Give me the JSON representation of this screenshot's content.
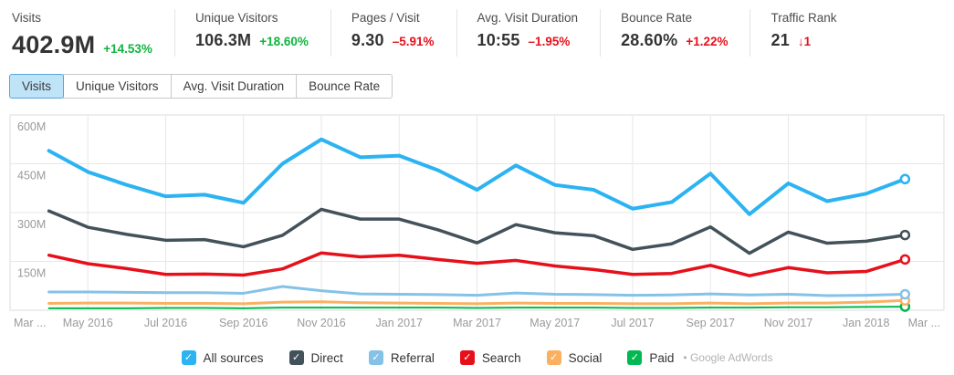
{
  "metrics": [
    {
      "label": "Visits",
      "value": "402.9M",
      "delta": "+14.53%",
      "delta_color": "green"
    },
    {
      "label": "Unique Visitors",
      "value": "106.3M",
      "delta": "+18.60%",
      "delta_color": "green"
    },
    {
      "label": "Pages / Visit",
      "value": "9.30",
      "delta": "–5.91%",
      "delta_color": "red"
    },
    {
      "label": "Avg. Visit Duration",
      "value": "10:55",
      "delta": "–1.95%",
      "delta_color": "red"
    },
    {
      "label": "Bounce Rate",
      "value": "28.60%",
      "delta": "+1.22%",
      "delta_color": "red"
    },
    {
      "label": "Traffic Rank",
      "value": "21",
      "delta": "↓1",
      "delta_color": "red"
    }
  ],
  "tabs": [
    {
      "label": "Visits",
      "selected": true
    },
    {
      "label": "Unique Visitors",
      "selected": false
    },
    {
      "label": "Avg. Visit Duration",
      "selected": false
    },
    {
      "label": "Bounce Rate",
      "selected": false
    }
  ],
  "legend": {
    "paid_suffix": "• Google AdWords"
  },
  "colors": {
    "delta_up": "#0eb53e",
    "delta_down": "#e6101b",
    "tab_selected_bg": "#bfe3f7",
    "tab_selected_border": "#55a7da",
    "grid": "#e7e7e7",
    "plot_border": "#dcdcdc",
    "axis_text": "#9a9a9a"
  },
  "chart_data": {
    "type": "line",
    "title": "Visits by source, monthly",
    "xlabel": "",
    "ylabel": "Visits",
    "ylim": [
      0,
      600
    ],
    "grid": true,
    "legend_position": "bottom",
    "y_tick_labels": [
      "600M",
      "450M",
      "300M",
      "150M"
    ],
    "x_range": [
      "Mar 2016",
      "Mar 2018"
    ],
    "x_tick_labels": [
      "Mar ...",
      "May 2016",
      "Jul 2016",
      "Sep 2016",
      "Nov 2016",
      "Jan 2017",
      "Mar 2017",
      "May 2017",
      "Jul 2017",
      "Sep 2017",
      "Nov 2017",
      "Jan 2018",
      "Mar ..."
    ],
    "months": [
      "Apr 2016",
      "May 2016",
      "Jun 2016",
      "Jul 2016",
      "Aug 2016",
      "Sep 2016",
      "Oct 2016",
      "Nov 2016",
      "Dec 2016",
      "Jan 2017",
      "Feb 2017",
      "Mar 2017",
      "Apr 2017",
      "May 2017",
      "Jun 2017",
      "Jul 2017",
      "Aug 2017",
      "Sep 2017",
      "Oct 2017",
      "Nov 2017",
      "Dec 2017",
      "Jan 2018",
      "Feb 2018"
    ],
    "unit": "M",
    "series": [
      {
        "name": "all-sources",
        "label": "All sources",
        "color": "#2bb3f2",
        "width": 4,
        "values": [
          490,
          425,
          385,
          350,
          355,
          330,
          450,
          525,
          470,
          475,
          430,
          370,
          445,
          385,
          370,
          312,
          332,
          420,
          295,
          390,
          335,
          358,
          403
        ]
      },
      {
        "name": "direct",
        "label": "Direct",
        "color": "#43525a",
        "width": 3.5,
        "values": [
          305,
          255,
          233,
          215,
          217,
          195,
          230,
          310,
          280,
          280,
          247,
          207,
          263,
          238,
          229,
          187,
          204,
          256,
          175,
          240,
          206,
          212,
          231
        ]
      },
      {
        "name": "referral",
        "label": "Referral",
        "color": "#85c2e8",
        "width": 3,
        "values": [
          56,
          56,
          55,
          54,
          54,
          52,
          73,
          60,
          50,
          49,
          48,
          46,
          53,
          49,
          48,
          46,
          47,
          50,
          47,
          49,
          45,
          46,
          49
        ]
      },
      {
        "name": "search",
        "label": "Search",
        "color": "#e6101b",
        "width": 3.5,
        "values": [
          169,
          143,
          128,
          110,
          111,
          108,
          127,
          176,
          164,
          169,
          156,
          144,
          153,
          136,
          125,
          110,
          113,
          138,
          106,
          131,
          115,
          119,
          156
        ]
      },
      {
        "name": "social",
        "label": "Social",
        "color": "#fbb061",
        "width": 3,
        "values": [
          21,
          22,
          22,
          21,
          21,
          20,
          25,
          26,
          23,
          22,
          21,
          20,
          22,
          21,
          21,
          20,
          20,
          22,
          20,
          22,
          22,
          25,
          30
        ]
      },
      {
        "name": "paid",
        "label": "Paid",
        "color": "#00b950",
        "width": 2,
        "values": [
          6,
          6,
          6,
          7,
          7,
          6,
          8,
          8,
          8,
          8,
          8,
          7,
          8,
          8,
          8,
          7,
          7,
          8,
          8,
          9,
          9,
          10,
          11
        ]
      }
    ]
  }
}
